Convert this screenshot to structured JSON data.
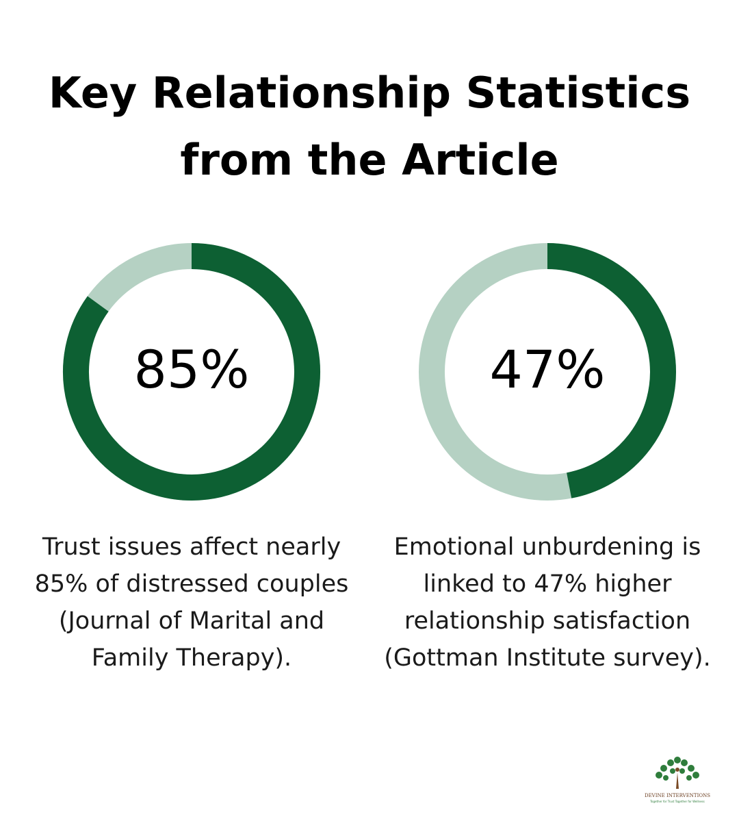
{
  "title": [
    "Key Relationship Statistics",
    "from the Article"
  ],
  "chart_data": [
    {
      "type": "donut",
      "values": [
        85
      ],
      "value_labels": [
        "85%"
      ],
      "color": "#0d6033",
      "track_color": "#b5d1c3",
      "description": [
        "Trust issues affect nearly",
        "85% of distressed couples",
        "(Journal of Marital and",
        "Family Therapy)."
      ]
    },
    {
      "type": "donut",
      "values": [
        47
      ],
      "value_labels": [
        "47%"
      ],
      "color": "#0d6033",
      "track_color": "#b5d1c3",
      "description": [
        "Emotional unburdening is",
        "linked to 47% higher",
        "relationship satisfaction",
        "(Gottman Institute survey)."
      ]
    }
  ],
  "logo": {
    "name": "DEVINE INTERVENTIONS",
    "tagline": "Together for Trust Together for Wellness"
  }
}
